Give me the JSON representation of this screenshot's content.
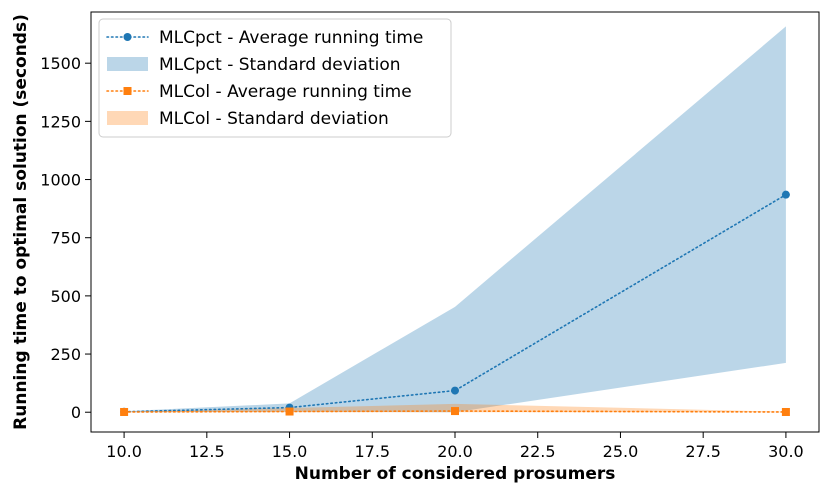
{
  "chart_data": {
    "type": "line",
    "title": "",
    "xlabel": "Number of considered prosumers",
    "ylabel": "Running time to optimal solution (seconds)",
    "xlim": [
      9.0,
      31.0
    ],
    "ylim": [
      -85,
      1720
    ],
    "xticks": [
      10.0,
      12.5,
      15.0,
      17.5,
      20.0,
      22.5,
      25.0,
      27.5,
      30.0
    ],
    "xtick_labels": [
      "10.0",
      "12.5",
      "15.0",
      "17.5",
      "20.0",
      "22.5",
      "25.0",
      "27.5",
      "30.0"
    ],
    "yticks": [
      0,
      250,
      500,
      750,
      1000,
      1250,
      1500
    ],
    "ytick_labels": [
      "0",
      "250",
      "500",
      "750",
      "1000",
      "1250",
      "1500"
    ],
    "grid": false,
    "legend_position": "top-left",
    "x": [
      10,
      15,
      20,
      30
    ],
    "series": [
      {
        "name": "MLCpct - Average running time",
        "std_name": "MLCpct - Standard deviation",
        "color": "#1f77b4",
        "band_color": "#1f77b4",
        "marker": "circle",
        "values": [
          2,
          20,
          93,
          935
        ],
        "std_lower": [
          0,
          2,
          0,
          212
        ],
        "std_upper": [
          4,
          38,
          453,
          1658
        ]
      },
      {
        "name": "MLCol - Average running time",
        "std_name": "MLCol - Standard deviation",
        "color": "#ff7f0e",
        "band_color": "#ff7f0e",
        "marker": "square",
        "values": [
          1,
          3,
          5,
          1
        ],
        "std_lower": [
          0,
          0,
          0,
          0
        ],
        "std_upper": [
          2,
          18,
          36,
          2
        ]
      }
    ]
  }
}
